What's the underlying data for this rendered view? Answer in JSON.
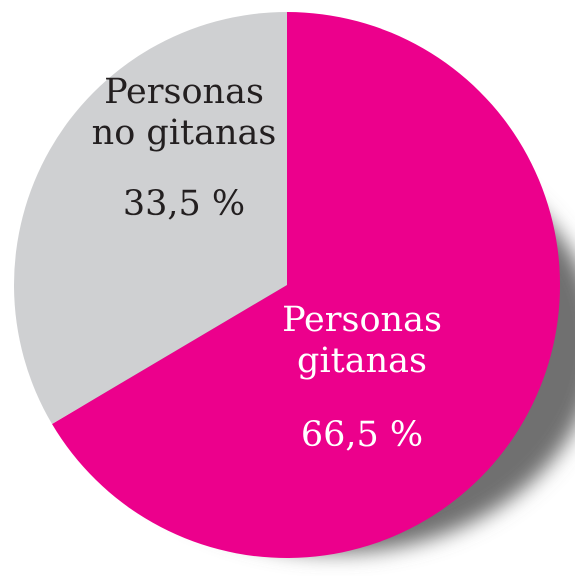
{
  "chart_data": {
    "type": "pie",
    "slices": [
      {
        "label_lines": [
          "Personas",
          "gitanas"
        ],
        "value": 66.5,
        "value_label": "66,5 %",
        "color": "#ec008c",
        "text_color": "#ffffff"
      },
      {
        "label_lines": [
          "Personas",
          "no gitanas"
        ],
        "value": 33.5,
        "value_label": "33,5 %",
        "color": "#cfd0d2",
        "text_color": "#231f20"
      }
    ],
    "shadow_color": "#6f6f6f",
    "start_angle": "12 o'clock",
    "direction": "clockwise"
  }
}
